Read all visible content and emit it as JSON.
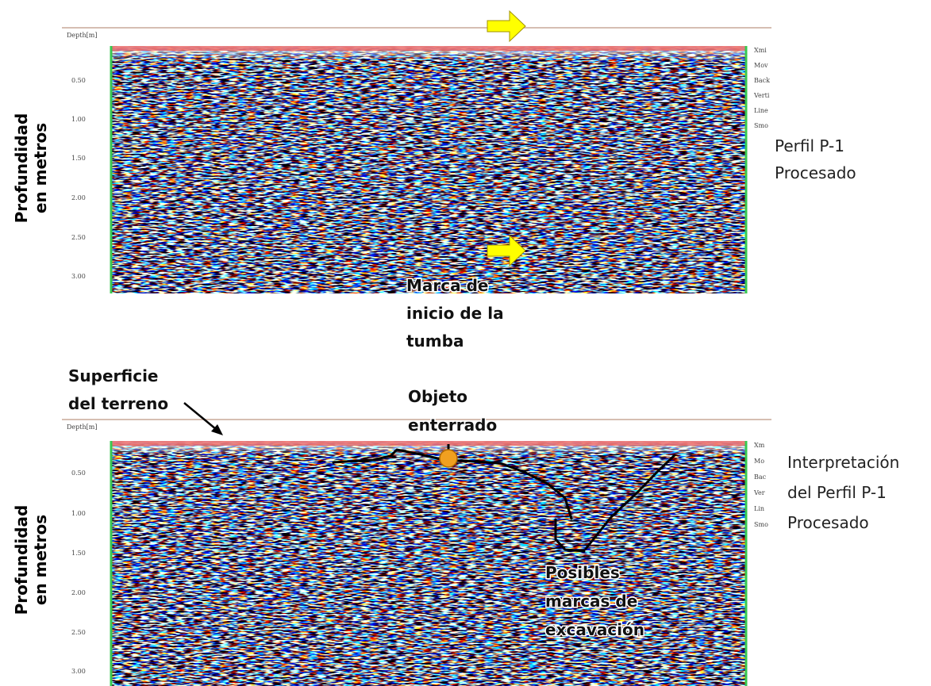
{
  "panels": [
    {
      "header": "Depth[m]",
      "tick_labels": [
        "0.50",
        "1.00",
        "1.50",
        "2.00",
        "2.50",
        "3.00"
      ],
      "side_tags": [
        "Xmi",
        "Mov",
        "Back",
        "Verti",
        "Line",
        "Smo"
      ],
      "axis_title": [
        "Profundidad",
        "en metros"
      ],
      "caption": [
        "Perfil P-1",
        "Procesado"
      ]
    },
    {
      "header": "Depth[m]",
      "tick_labels": [
        "0.50",
        "1.00",
        "1.50",
        "2.00",
        "2.50",
        "3.00"
      ],
      "side_tags": [
        "Xm",
        "Mo",
        "Bac",
        "Ver",
        "Lin",
        "Smo"
      ],
      "axis_title": [
        "Profundidad",
        "en metros"
      ],
      "caption": [
        "Interpretación",
        "del Perfil P-1",
        "Procesado"
      ]
    }
  ],
  "annotations": {
    "tomb_mark": [
      "Marca de",
      "inicio de la",
      "tumba"
    ],
    "surface": [
      "Superficie",
      "del terreno"
    ],
    "object": [
      "Objeto",
      "enterrado"
    ],
    "excavation": [
      "Posibles",
      "marcas de",
      "excavación"
    ]
  },
  "colors": {
    "positive": "#e03030",
    "negative": "#2030d8",
    "arrow": "#ffff00",
    "object_marker": "#f0a020",
    "frame": "#c8a898",
    "grid_edge": "#38c850"
  }
}
